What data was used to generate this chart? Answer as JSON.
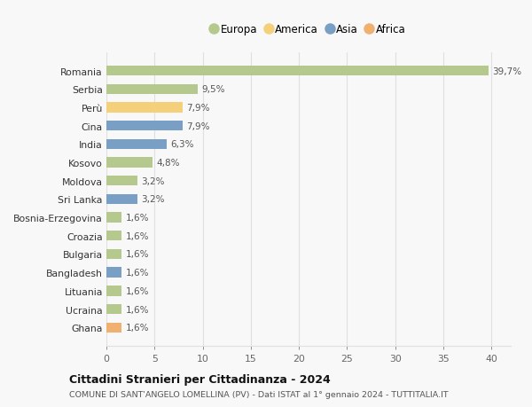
{
  "countries": [
    "Romania",
    "Serbia",
    "Perù",
    "Cina",
    "India",
    "Kosovo",
    "Moldova",
    "Sri Lanka",
    "Bosnia-Erzegovina",
    "Croazia",
    "Bulgaria",
    "Bangladesh",
    "Lituania",
    "Ucraina",
    "Ghana"
  ],
  "values": [
    39.7,
    9.5,
    7.9,
    7.9,
    6.3,
    4.8,
    3.2,
    3.2,
    1.6,
    1.6,
    1.6,
    1.6,
    1.6,
    1.6,
    1.6
  ],
  "labels": [
    "39,7%",
    "9,5%",
    "7,9%",
    "7,9%",
    "6,3%",
    "4,8%",
    "3,2%",
    "3,2%",
    "1,6%",
    "1,6%",
    "1,6%",
    "1,6%",
    "1,6%",
    "1,6%",
    "1,6%"
  ],
  "continents": [
    "Europa",
    "Europa",
    "America",
    "Asia",
    "Asia",
    "Europa",
    "Europa",
    "Asia",
    "Europa",
    "Europa",
    "Europa",
    "Asia",
    "Europa",
    "Europa",
    "Africa"
  ],
  "colors": {
    "Europa": "#b5c98e",
    "America": "#f5d07a",
    "Asia": "#7a9fc4",
    "Africa": "#f0b070"
  },
  "legend_order": [
    "Europa",
    "America",
    "Asia",
    "Africa"
  ],
  "title1": "Cittadini Stranieri per Cittadinanza - 2024",
  "title2": "COMUNE DI SANT'ANGELO LOMELLINA (PV) - Dati ISTAT al 1° gennaio 2024 - TUTTITALIA.IT",
  "xlim": [
    0,
    42
  ],
  "xticks": [
    0,
    5,
    10,
    15,
    20,
    25,
    30,
    35,
    40
  ],
  "background_color": "#f8f8f8",
  "grid_color": "#e0e0e0",
  "bar_height": 0.55
}
